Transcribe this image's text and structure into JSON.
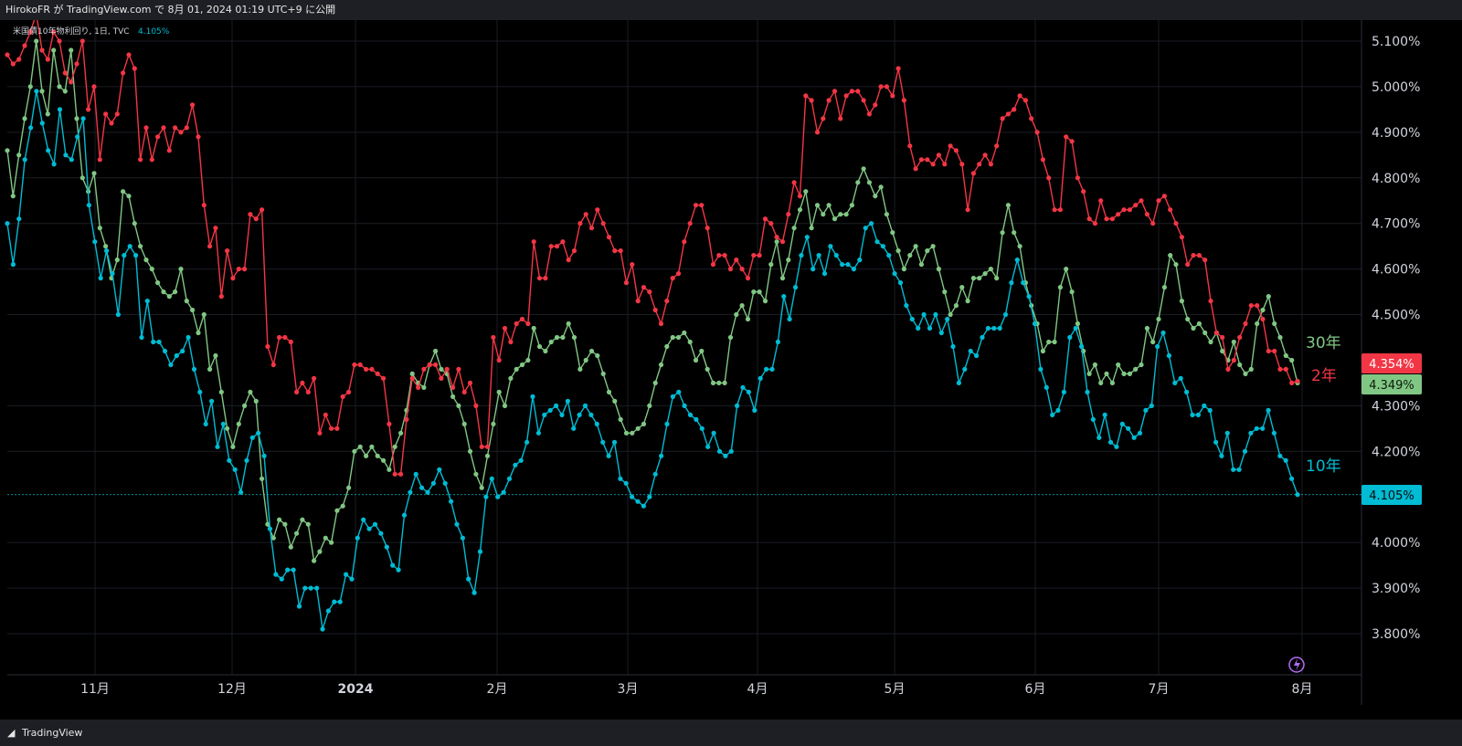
{
  "header": {
    "publish_line": "HirokoFR が TradingView.com で 8月 01, 2024 01:19 UTC+9 に公開"
  },
  "legend": {
    "symbol": "米国債10年物利回り, 1日, TVC",
    "value": "4.105%"
  },
  "footer": {
    "brand": "TradingView"
  },
  "colors": {
    "two_year": "#f23645",
    "ten_year": "#00bcd4",
    "thirty_year": "#81c784",
    "background": "#000000"
  },
  "chart_data": {
    "type": "line",
    "x_ticks": [
      "11月",
      "12月",
      "2024",
      "2月",
      "3月",
      "4月",
      "5月",
      "6月",
      "7月",
      "8月"
    ],
    "y_ticks": [
      "5.100%",
      "5.000%",
      "4.900%",
      "4.800%",
      "4.700%",
      "4.600%",
      "4.500%",
      "4.300%",
      "4.200%",
      "4.000%",
      "3.900%",
      "3.800%"
    ],
    "ylim": [
      3.74,
      5.15
    ],
    "series": [
      {
        "name": "30年",
        "color": "#81c784",
        "last_label": "4.349%",
        "values": [
          4.86,
          4.76,
          4.85,
          4.93,
          5.0,
          5.1,
          4.99,
          4.94,
          5.08,
          5.0,
          4.99,
          5.08,
          4.93,
          4.8,
          4.77,
          4.81,
          4.69,
          4.65,
          4.58,
          4.62,
          4.77,
          4.76,
          4.7,
          4.65,
          4.62,
          4.6,
          4.57,
          4.55,
          4.54,
          4.55,
          4.6,
          4.53,
          4.51,
          4.46,
          4.5,
          4.38,
          4.41,
          4.33,
          4.25,
          4.21,
          4.26,
          4.3,
          4.33,
          4.31,
          4.14,
          4.04,
          4.01,
          4.05,
          4.04,
          3.99,
          4.02,
          4.05,
          4.04,
          3.96,
          3.98,
          4.01,
          4.0,
          4.07,
          4.08,
          4.12,
          4.2,
          4.21,
          4.19,
          4.21,
          4.19,
          4.18,
          4.16,
          4.21,
          4.24,
          4.29,
          4.37,
          4.35,
          4.34,
          4.39,
          4.42,
          4.38,
          4.37,
          4.32,
          4.3,
          4.26,
          4.2,
          4.15,
          4.12,
          4.19,
          4.26,
          4.33,
          4.3,
          4.36,
          4.38,
          4.39,
          4.4,
          4.47,
          4.43,
          4.42,
          4.44,
          4.45,
          4.45,
          4.48,
          4.45,
          4.38,
          4.4,
          4.42,
          4.41,
          4.37,
          4.33,
          4.31,
          4.27,
          4.24,
          4.24,
          4.25,
          4.26,
          4.3,
          4.35,
          4.39,
          4.43,
          4.45,
          4.45,
          4.46,
          4.44,
          4.4,
          4.42,
          4.38,
          4.35,
          4.35,
          4.35,
          4.45,
          4.5,
          4.52,
          4.49,
          4.55,
          4.55,
          4.53,
          4.61,
          4.66,
          4.58,
          4.62,
          4.69,
          4.73,
          4.77,
          4.69,
          4.74,
          4.72,
          4.74,
          4.71,
          4.72,
          4.72,
          4.74,
          4.79,
          4.82,
          4.79,
          4.76,
          4.78,
          4.72,
          4.68,
          4.64,
          4.6,
          4.63,
          4.65,
          4.61,
          4.64,
          4.65,
          4.6,
          4.55,
          4.5,
          4.52,
          4.56,
          4.53,
          4.58,
          4.58,
          4.59,
          4.6,
          4.58,
          4.68,
          4.74,
          4.68,
          4.65,
          4.57,
          4.52,
          4.48,
          4.42,
          4.44,
          4.44,
          4.56,
          4.6,
          4.55,
          4.48,
          4.42,
          4.37,
          4.39,
          4.35,
          4.37,
          4.35,
          4.39,
          4.37,
          4.37,
          4.38,
          4.39,
          4.47,
          4.44,
          4.49,
          4.56,
          4.63,
          4.61,
          4.53,
          4.49,
          4.47,
          4.48,
          4.46,
          4.44,
          4.46,
          4.42,
          4.4,
          4.44,
          4.39,
          4.37,
          4.38,
          4.48,
          4.51,
          4.54,
          4.48,
          4.45,
          4.41,
          4.4,
          4.35
        ]
      },
      {
        "name": "2年",
        "color": "#f23645",
        "last_label": "4.354%",
        "values": [
          5.07,
          5.05,
          5.06,
          5.09,
          5.12,
          5.16,
          5.08,
          5.06,
          5.12,
          5.1,
          5.03,
          5.01,
          5.05,
          5.1,
          4.95,
          5.0,
          4.84,
          4.94,
          4.92,
          4.94,
          5.03,
          5.07,
          5.04,
          4.84,
          4.91,
          4.84,
          4.89,
          4.91,
          4.86,
          4.91,
          4.9,
          4.91,
          4.96,
          4.89,
          4.74,
          4.65,
          4.69,
          4.54,
          4.64,
          4.58,
          4.6,
          4.6,
          4.72,
          4.71,
          4.73,
          4.43,
          4.39,
          4.45,
          4.45,
          4.44,
          4.33,
          4.35,
          4.33,
          4.36,
          4.24,
          4.28,
          4.25,
          4.25,
          4.32,
          4.33,
          4.39,
          4.39,
          4.38,
          4.38,
          4.37,
          4.36,
          4.26,
          4.15,
          4.15,
          4.27,
          4.36,
          4.34,
          4.38,
          4.39,
          4.39,
          4.36,
          4.38,
          4.34,
          4.38,
          4.33,
          4.35,
          4.3,
          4.21,
          4.21,
          4.45,
          4.4,
          4.47,
          4.44,
          4.48,
          4.49,
          4.48,
          4.66,
          4.58,
          4.58,
          4.65,
          4.65,
          4.66,
          4.62,
          4.64,
          4.7,
          4.72,
          4.69,
          4.73,
          4.7,
          4.67,
          4.64,
          4.64,
          4.57,
          4.61,
          4.53,
          4.56,
          4.55,
          4.51,
          4.48,
          4.53,
          4.58,
          4.59,
          4.66,
          4.7,
          4.74,
          4.74,
          4.69,
          4.61,
          4.63,
          4.63,
          4.6,
          4.62,
          4.6,
          4.58,
          4.63,
          4.63,
          4.71,
          4.7,
          4.67,
          4.66,
          4.72,
          4.79,
          4.76,
          4.98,
          4.97,
          4.9,
          4.93,
          4.97,
          4.99,
          4.93,
          4.98,
          4.99,
          4.99,
          4.97,
          4.94,
          4.96,
          5.0,
          5.0,
          4.98,
          5.04,
          4.97,
          4.87,
          4.82,
          4.84,
          4.84,
          4.83,
          4.85,
          4.83,
          4.87,
          4.86,
          4.83,
          4.73,
          4.81,
          4.83,
          4.85,
          4.83,
          4.87,
          4.93,
          4.94,
          4.95,
          4.98,
          4.97,
          4.93,
          4.9,
          4.84,
          4.8,
          4.73,
          4.73,
          4.89,
          4.88,
          4.8,
          4.77,
          4.71,
          4.7,
          4.75,
          4.71,
          4.71,
          4.72,
          4.73,
          4.73,
          4.74,
          4.75,
          4.72,
          4.7,
          4.75,
          4.76,
          4.73,
          4.7,
          4.67,
          4.61,
          4.63,
          4.63,
          4.62,
          4.53,
          4.46,
          4.45,
          4.38,
          4.4,
          4.45,
          4.48,
          4.52,
          4.52,
          4.49,
          4.42,
          4.42,
          4.38,
          4.38,
          4.35,
          4.354
        ]
      },
      {
        "name": "10年",
        "color": "#00bcd4",
        "last_label": "4.105%",
        "values": [
          4.7,
          4.61,
          4.71,
          4.84,
          4.91,
          4.99,
          4.92,
          4.86,
          4.83,
          4.95,
          4.85,
          4.84,
          4.89,
          4.93,
          4.74,
          4.66,
          4.58,
          4.64,
          4.59,
          4.5,
          4.63,
          4.65,
          4.63,
          4.45,
          4.53,
          4.44,
          4.44,
          4.42,
          4.39,
          4.41,
          4.42,
          4.45,
          4.38,
          4.33,
          4.26,
          4.31,
          4.21,
          4.26,
          4.18,
          4.16,
          4.11,
          4.18,
          4.23,
          4.24,
          4.19,
          4.03,
          3.93,
          3.92,
          3.94,
          3.94,
          3.86,
          3.9,
          3.9,
          3.9,
          3.81,
          3.85,
          3.87,
          3.87,
          3.93,
          3.92,
          4.01,
          4.05,
          4.03,
          4.04,
          4.02,
          3.99,
          3.95,
          3.94,
          4.06,
          4.11,
          4.15,
          4.12,
          4.11,
          4.13,
          4.16,
          4.13,
          4.09,
          4.04,
          4.01,
          3.92,
          3.89,
          3.98,
          4.1,
          4.14,
          4.1,
          4.11,
          4.14,
          4.17,
          4.18,
          4.22,
          4.32,
          4.24,
          4.28,
          4.29,
          4.3,
          4.28,
          4.31,
          4.25,
          4.28,
          4.3,
          4.28,
          4.26,
          4.22,
          4.19,
          4.22,
          4.14,
          4.13,
          4.1,
          4.09,
          4.08,
          4.1,
          4.15,
          4.19,
          4.26,
          4.32,
          4.33,
          4.3,
          4.28,
          4.27,
          4.25,
          4.21,
          4.24,
          4.2,
          4.19,
          4.2,
          4.3,
          4.34,
          4.33,
          4.29,
          4.36,
          4.38,
          4.38,
          4.44,
          4.54,
          4.49,
          4.56,
          4.63,
          4.67,
          4.6,
          4.63,
          4.59,
          4.65,
          4.63,
          4.61,
          4.61,
          4.6,
          4.62,
          4.69,
          4.7,
          4.66,
          4.65,
          4.63,
          4.59,
          4.57,
          4.52,
          4.49,
          4.47,
          4.5,
          4.47,
          4.5,
          4.46,
          4.49,
          4.43,
          4.35,
          4.38,
          4.42,
          4.41,
          4.45,
          4.47,
          4.47,
          4.47,
          4.5,
          4.57,
          4.62,
          4.57,
          4.54,
          4.48,
          4.38,
          4.34,
          4.28,
          4.29,
          4.33,
          4.45,
          4.47,
          4.43,
          4.33,
          4.27,
          4.23,
          4.28,
          4.22,
          4.21,
          4.26,
          4.25,
          4.23,
          4.24,
          4.29,
          4.3,
          4.43,
          4.46,
          4.41,
          4.35,
          4.36,
          4.33,
          4.28,
          4.28,
          4.3,
          4.29,
          4.22,
          4.19,
          4.24,
          4.16,
          4.16,
          4.2,
          4.24,
          4.25,
          4.25,
          4.29,
          4.24,
          4.19,
          4.18,
          4.14,
          4.105
        ]
      }
    ],
    "series_labels": {
      "thirty": "30年",
      "two": "2年",
      "ten": "10年"
    }
  }
}
